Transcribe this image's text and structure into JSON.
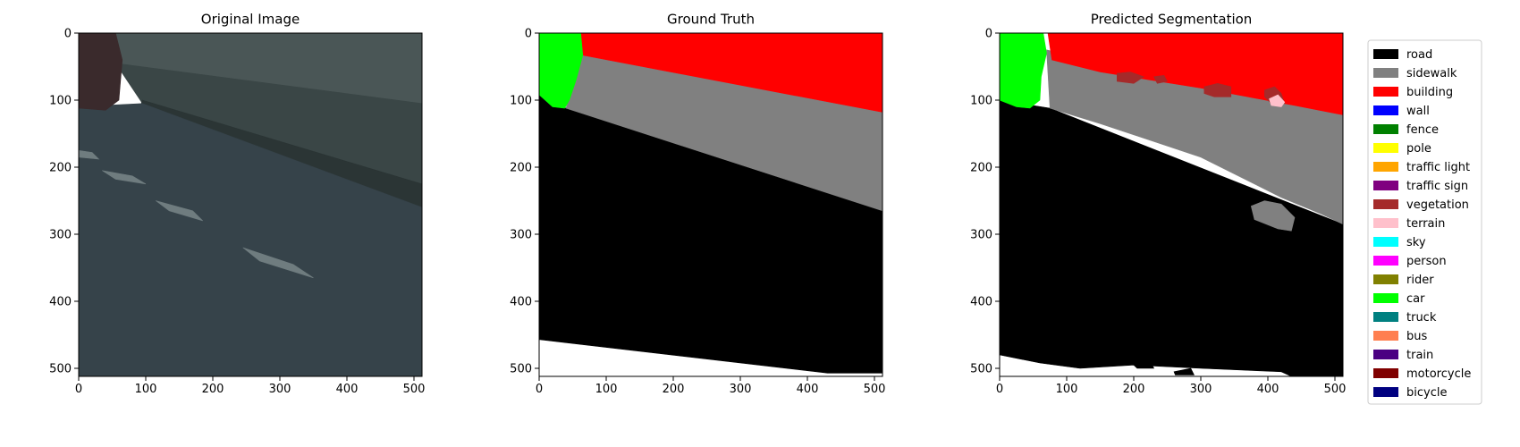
{
  "panels": [
    {
      "title": "Original Image",
      "kind": "photo",
      "image_size": [
        512,
        512
      ],
      "xticks": [
        0,
        100,
        200,
        300,
        400,
        500
      ],
      "yticks": [
        0,
        100,
        200,
        300,
        400,
        500
      ],
      "regions": [
        {
          "class": "building-wall",
          "color": "#4a5656",
          "polygon": [
            [
              0,
              0
            ],
            [
              512,
              0
            ],
            [
              512,
              120
            ],
            [
              470,
              100
            ],
            [
              100,
              60
            ],
            [
              0,
              50
            ]
          ]
        },
        {
          "class": "sidewalk",
          "color": "#3a4646",
          "polygon": [
            [
              55,
              45
            ],
            [
              512,
              105
            ],
            [
              512,
              260
            ],
            [
              95,
              105
            ]
          ]
        },
        {
          "class": "curb",
          "color": "#2b3535",
          "polygon": [
            [
              95,
              100
            ],
            [
              512,
              225
            ],
            [
              512,
              262
            ],
            [
              90,
              115
            ]
          ]
        },
        {
          "class": "road",
          "color": "#36434a",
          "polygon": [
            [
              0,
              110
            ],
            [
              95,
              105
            ],
            [
              512,
              260
            ],
            [
              512,
              512
            ],
            [
              0,
              512
            ]
          ]
        },
        {
          "class": "car",
          "color": "#3a2a2c",
          "polygon": [
            [
              0,
              0
            ],
            [
              55,
              0
            ],
            [
              65,
              40
            ],
            [
              60,
              100
            ],
            [
              40,
              115
            ],
            [
              0,
              112
            ]
          ]
        },
        {
          "class": "road-marking",
          "color": "#6f7c7f",
          "polygon": [
            [
              35,
              205
            ],
            [
              80,
              213
            ],
            [
              100,
              225
            ],
            [
              55,
              218
            ]
          ]
        },
        {
          "class": "road-marking",
          "color": "#6f7c7f",
          "polygon": [
            [
              115,
              250
            ],
            [
              170,
              265
            ],
            [
              185,
              280
            ],
            [
              135,
              265
            ]
          ]
        },
        {
          "class": "road-marking",
          "color": "#6f7c7f",
          "polygon": [
            [
              245,
              320
            ],
            [
              320,
              345
            ],
            [
              350,
              365
            ],
            [
              270,
              340
            ]
          ]
        },
        {
          "class": "road-marking",
          "color": "#6f7c7f",
          "polygon": [
            [
              0,
              175
            ],
            [
              20,
              178
            ],
            [
              30,
              188
            ],
            [
              0,
              185
            ]
          ]
        }
      ]
    },
    {
      "title": "Ground Truth",
      "kind": "segmentation",
      "image_size": [
        512,
        512
      ],
      "xticks": [
        0,
        100,
        200,
        300,
        400,
        500
      ],
      "yticks": [
        0,
        100,
        200,
        300,
        400,
        500
      ],
      "regions": [
        {
          "class": "unlabeled",
          "color": "#ffffff",
          "polygon": [
            [
              0,
              0
            ],
            [
              512,
              0
            ],
            [
              512,
              512
            ],
            [
              0,
              512
            ]
          ]
        },
        {
          "class": "road",
          "color": "#000000",
          "polygon": [
            [
              0,
              92
            ],
            [
              40,
              112
            ],
            [
              512,
              265
            ],
            [
              512,
              507
            ],
            [
              430,
              507
            ],
            [
              0,
              457
            ]
          ]
        },
        {
          "class": "sidewalk",
          "color": "#808080",
          "polygon": [
            [
              65,
              33
            ],
            [
              512,
              118
            ],
            [
              512,
              265
            ],
            [
              40,
              112
            ]
          ]
        },
        {
          "class": "building",
          "color": "#ff0000",
          "polygon": [
            [
              62,
              0
            ],
            [
              512,
              0
            ],
            [
              512,
              118
            ],
            [
              65,
              33
            ]
          ]
        },
        {
          "class": "car",
          "color": "#00ff00",
          "polygon": [
            [
              0,
              0
            ],
            [
              62,
              0
            ],
            [
              65,
              33
            ],
            [
              55,
              70
            ],
            [
              45,
              100
            ],
            [
              38,
              112
            ],
            [
              20,
              110
            ],
            [
              0,
              92
            ]
          ]
        }
      ]
    },
    {
      "title": "Predicted Segmentation",
      "kind": "segmentation",
      "image_size": [
        512,
        512
      ],
      "xticks": [
        0,
        100,
        200,
        300,
        400,
        500
      ],
      "yticks": [
        0,
        100,
        200,
        300,
        400,
        500
      ],
      "regions": [
        {
          "class": "unlabeled",
          "color": "#ffffff",
          "polygon": [
            [
              0,
              0
            ],
            [
              512,
              0
            ],
            [
              512,
              512
            ],
            [
              0,
              512
            ]
          ]
        },
        {
          "class": "road",
          "color": "#000000",
          "polygon": [
            [
              0,
              100
            ],
            [
              75,
              112
            ],
            [
              512,
              285
            ],
            [
              512,
              512
            ],
            [
              435,
              512
            ],
            [
              420,
              505
            ],
            [
              300,
              500
            ],
            [
              200,
              495
            ],
            [
              120,
              500
            ],
            [
              60,
              492
            ],
            [
              0,
              480
            ]
          ]
        },
        {
          "class": "sidewalk",
          "color": "#808080",
          "polygon": [
            [
              70,
              25
            ],
            [
              150,
              45
            ],
            [
              300,
              75
            ],
            [
              440,
              100
            ],
            [
              512,
              120
            ],
            [
              512,
              285
            ],
            [
              480,
              270
            ],
            [
              420,
              245
            ],
            [
              300,
              185
            ],
            [
              150,
              135
            ],
            [
              75,
              112
            ]
          ]
        },
        {
          "class": "sidewalk",
          "color": "#808080",
          "polygon": [
            [
              375,
              258
            ],
            [
              395,
              250
            ],
            [
              420,
              255
            ],
            [
              440,
              275
            ],
            [
              435,
              295
            ],
            [
              415,
              292
            ],
            [
              380,
              278
            ]
          ]
        },
        {
          "class": "building",
          "color": "#ff0000",
          "polygon": [
            [
              72,
              0
            ],
            [
              512,
              0
            ],
            [
              512,
              122
            ],
            [
              440,
              108
            ],
            [
              300,
              82
            ],
            [
              150,
              58
            ],
            [
              78,
              40
            ]
          ]
        },
        {
          "class": "vegetation",
          "color": "#a52a2a",
          "polygon": [
            [
              305,
              80
            ],
            [
              325,
              75
            ],
            [
              345,
              80
            ],
            [
              345,
              95
            ],
            [
              320,
              95
            ],
            [
              305,
              90
            ]
          ]
        },
        {
          "class": "vegetation",
          "color": "#a52a2a",
          "polygon": [
            [
              395,
              85
            ],
            [
              410,
              80
            ],
            [
              420,
              90
            ],
            [
              425,
              105
            ],
            [
              405,
              105
            ],
            [
              395,
              95
            ]
          ]
        },
        {
          "class": "vegetation",
          "color": "#a52a2a",
          "polygon": [
            [
              175,
              60
            ],
            [
              195,
              58
            ],
            [
              215,
              65
            ],
            [
              200,
              75
            ],
            [
              175,
              72
            ]
          ]
        },
        {
          "class": "vegetation",
          "color": "#a52a2a",
          "polygon": [
            [
              230,
              65
            ],
            [
              245,
              63
            ],
            [
              250,
              72
            ],
            [
              235,
              75
            ]
          ]
        },
        {
          "class": "terrain",
          "color": "#ffc0cb",
          "polygon": [
            [
              402,
              98
            ],
            [
              415,
              92
            ],
            [
              425,
              103
            ],
            [
              420,
              110
            ],
            [
              405,
              108
            ]
          ]
        },
        {
          "class": "car",
          "color": "#00ff00",
          "polygon": [
            [
              0,
              0
            ],
            [
              65,
              0
            ],
            [
              70,
              30
            ],
            [
              62,
              65
            ],
            [
              60,
              100
            ],
            [
              45,
              112
            ],
            [
              25,
              110
            ],
            [
              0,
              100
            ]
          ]
        },
        {
          "class": "road",
          "color": "#000000",
          "polygon": [
            [
              200,
              495
            ],
            [
              225,
              490
            ],
            [
              230,
              500
            ],
            [
              205,
              500
            ]
          ]
        },
        {
          "class": "road",
          "color": "#000000",
          "polygon": [
            [
              260,
              505
            ],
            [
              285,
              500
            ],
            [
              290,
              510
            ],
            [
              262,
              510
            ]
          ]
        }
      ]
    }
  ],
  "legend": [
    {
      "label": "road",
      "color": "#000000"
    },
    {
      "label": "sidewalk",
      "color": "#808080"
    },
    {
      "label": "building",
      "color": "#ff0000"
    },
    {
      "label": "wall",
      "color": "#0000ff"
    },
    {
      "label": "fence",
      "color": "#008000"
    },
    {
      "label": "pole",
      "color": "#ffff00"
    },
    {
      "label": "traffic light",
      "color": "#ffa500"
    },
    {
      "label": "traffic sign",
      "color": "#800080"
    },
    {
      "label": "vegetation",
      "color": "#a52a2a"
    },
    {
      "label": "terrain",
      "color": "#ffc0cb"
    },
    {
      "label": "sky",
      "color": "#00ffff"
    },
    {
      "label": "person",
      "color": "#ff00ff"
    },
    {
      "label": "rider",
      "color": "#808000"
    },
    {
      "label": "car",
      "color": "#00ff00"
    },
    {
      "label": "truck",
      "color": "#008080"
    },
    {
      "label": "bus",
      "color": "#ff7f50"
    },
    {
      "label": "train",
      "color": "#4b0082"
    },
    {
      "label": "motorcycle",
      "color": "#800000"
    },
    {
      "label": "bicycle",
      "color": "#000080"
    }
  ],
  "chart_data": [
    {
      "type": "heatmap",
      "title": "Original Image",
      "xlim": [
        0,
        512
      ],
      "ylim": [
        512,
        0
      ],
      "xticks": [
        0,
        100,
        200,
        300,
        400,
        500
      ],
      "yticks": [
        0,
        100,
        200,
        300,
        400,
        500
      ]
    },
    {
      "type": "heatmap",
      "title": "Ground Truth",
      "xlim": [
        0,
        512
      ],
      "ylim": [
        512,
        0
      ],
      "xticks": [
        0,
        100,
        200,
        300,
        400,
        500
      ],
      "yticks": [
        0,
        100,
        200,
        300,
        400,
        500
      ]
    },
    {
      "type": "heatmap",
      "title": "Predicted Segmentation",
      "xlim": [
        0,
        512
      ],
      "ylim": [
        512,
        0
      ],
      "xticks": [
        0,
        100,
        200,
        300,
        400,
        500
      ],
      "yticks": [
        0,
        100,
        200,
        300,
        400,
        500
      ],
      "legend_position": "right"
    }
  ]
}
